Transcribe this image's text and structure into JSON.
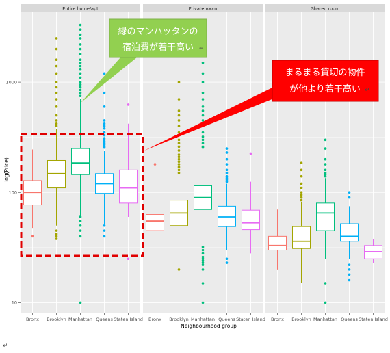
{
  "chart_data": {
    "type": "boxplot",
    "y_scale": "log10",
    "ylim": [
      8,
      4300
    ],
    "yticks": [
      10,
      100,
      1000
    ],
    "ylabel": "log(Price)",
    "xlabel": "Neighbourhood group",
    "categories": [
      "Bronx",
      "Brooklyn",
      "Manhattan",
      "Queens",
      "Staten Island"
    ],
    "colors": {
      "Bronx": "#f8766d",
      "Brooklyn": "#a3a500",
      "Manhattan": "#00bf7d",
      "Queens": "#00b0f6",
      "Staten Island": "#e76bf3"
    },
    "facets": [
      {
        "label": "Entire home/apt",
        "boxes": [
          {
            "group": "Bronx",
            "min": 47,
            "q1": 77,
            "median": 100,
            "q3": 128,
            "max": 245,
            "outliers": [
              40
            ]
          },
          {
            "group": "Brooklyn",
            "min": 50,
            "q1": 110,
            "median": 148,
            "q3": 195,
            "max": 375,
            "outliers": [
              2500,
              2000,
              1600,
              1400,
              1200,
              1000,
              900,
              800,
              700,
              600,
              500,
              450,
              420,
              400,
              45,
              42,
              40,
              38
            ]
          },
          {
            "group": "Manhattan",
            "min": 60,
            "q1": 145,
            "median": 185,
            "q3": 250,
            "max": 700,
            "outliers": [
              3300,
              3000,
              2700,
              2500,
              2200,
              2000,
              1800,
              1600,
              1500,
              1400,
              1300,
              1200,
              1100,
              1000,
              950,
              900,
              850,
              800,
              750,
              60,
              55,
              50,
              45,
              40,
              10
            ]
          },
          {
            "group": "Queens",
            "min": 52,
            "q1": 98,
            "median": 120,
            "q3": 148,
            "max": 240,
            "outliers": [
              1200,
              800,
              600,
              450,
              420,
              400,
              380,
              350,
              330,
              310,
              300,
              290,
              280,
              270,
              260,
              255,
              50,
              45,
              40
            ]
          },
          {
            "group": "Staten Island",
            "min": 60,
            "q1": 80,
            "median": 110,
            "q3": 160,
            "max": 420,
            "outliers": [
              625,
              25
            ]
          }
        ]
      },
      {
        "label": "Private room",
        "boxes": [
          {
            "group": "Bronx",
            "min": 30,
            "q1": 45,
            "median": 55,
            "q3": 63,
            "max": 155,
            "outliers": [
              180
            ]
          },
          {
            "group": "Brooklyn",
            "min": 30,
            "q1": 50,
            "median": 65,
            "q3": 85,
            "max": 140,
            "outliers": [
              1000,
              700,
              550,
              500,
              450,
              400,
              350,
              300,
              280,
              260,
              240,
              220,
              210,
              200,
              190,
              180,
              170,
              160,
              150,
              20
            ]
          },
          {
            "group": "Manhattan",
            "min": 30,
            "q1": 70,
            "median": 90,
            "q3": 115,
            "max": 250,
            "outliers": [
              1500,
              1200,
              1000,
              800,
              700,
              600,
              550,
              500,
              450,
              400,
              350,
              320,
              300,
              280,
              260,
              255,
              32,
              30,
              28,
              26,
              25,
              24,
              23,
              22,
              20,
              15,
              10
            ]
          },
          {
            "group": "Queens",
            "min": 30,
            "q1": 49,
            "median": 60,
            "q3": 75,
            "max": 120,
            "outliers": [
              250,
              230,
              200,
              180,
              160,
              150,
              140,
              135,
              130,
              125,
              25,
              23
            ]
          },
          {
            "group": "Staten Island",
            "min": 28,
            "q1": 46,
            "median": 53,
            "q3": 69,
            "max": 125,
            "outliers": [
              225
            ]
          }
        ]
      },
      {
        "label": "Shared room",
        "boxes": [
          {
            "group": "Bronx",
            "min": 20,
            "q1": 30,
            "median": 33,
            "q3": 40,
            "max": 70,
            "outliers": []
          },
          {
            "group": "Brooklyn",
            "min": 15,
            "q1": 31,
            "median": 36,
            "q3": 49,
            "max": 82,
            "outliers": [
              185,
              160,
              140,
              120,
              110,
              100,
              95,
              90,
              85
            ]
          },
          {
            "group": "Manhattan",
            "min": 25,
            "q1": 45,
            "median": 65,
            "q3": 80,
            "max": 135,
            "outliers": [
              300,
              250,
              200,
              180,
              160,
              150,
              145,
              140,
              15,
              10
            ]
          },
          {
            "group": "Queens",
            "min": 25,
            "q1": 36,
            "median": 40,
            "q3": 52,
            "max": 75,
            "outliers": [
              100,
              90,
              22,
              20,
              18,
              16
            ]
          },
          {
            "group": "Staten Island",
            "min": 23,
            "q1": 25,
            "median": 29,
            "q3": 33,
            "max": 38,
            "outliers": []
          }
        ]
      }
    ]
  },
  "annotations": {
    "green_callout": {
      "lines": [
        "緑のマンハッタンの",
        "宿泊費が若干高い"
      ],
      "return_mark": "↵",
      "fill": "#92d050",
      "stroke": "#7fb24a"
    },
    "red_callout": {
      "lines": [
        "まるまる貸切の物件",
        "が他より若干高い"
      ],
      "return_mark": "↵",
      "fill": "#ff0000",
      "stroke": "#c00000"
    },
    "highlight_box_color": "#e00000",
    "page_return_mark": "↵"
  }
}
